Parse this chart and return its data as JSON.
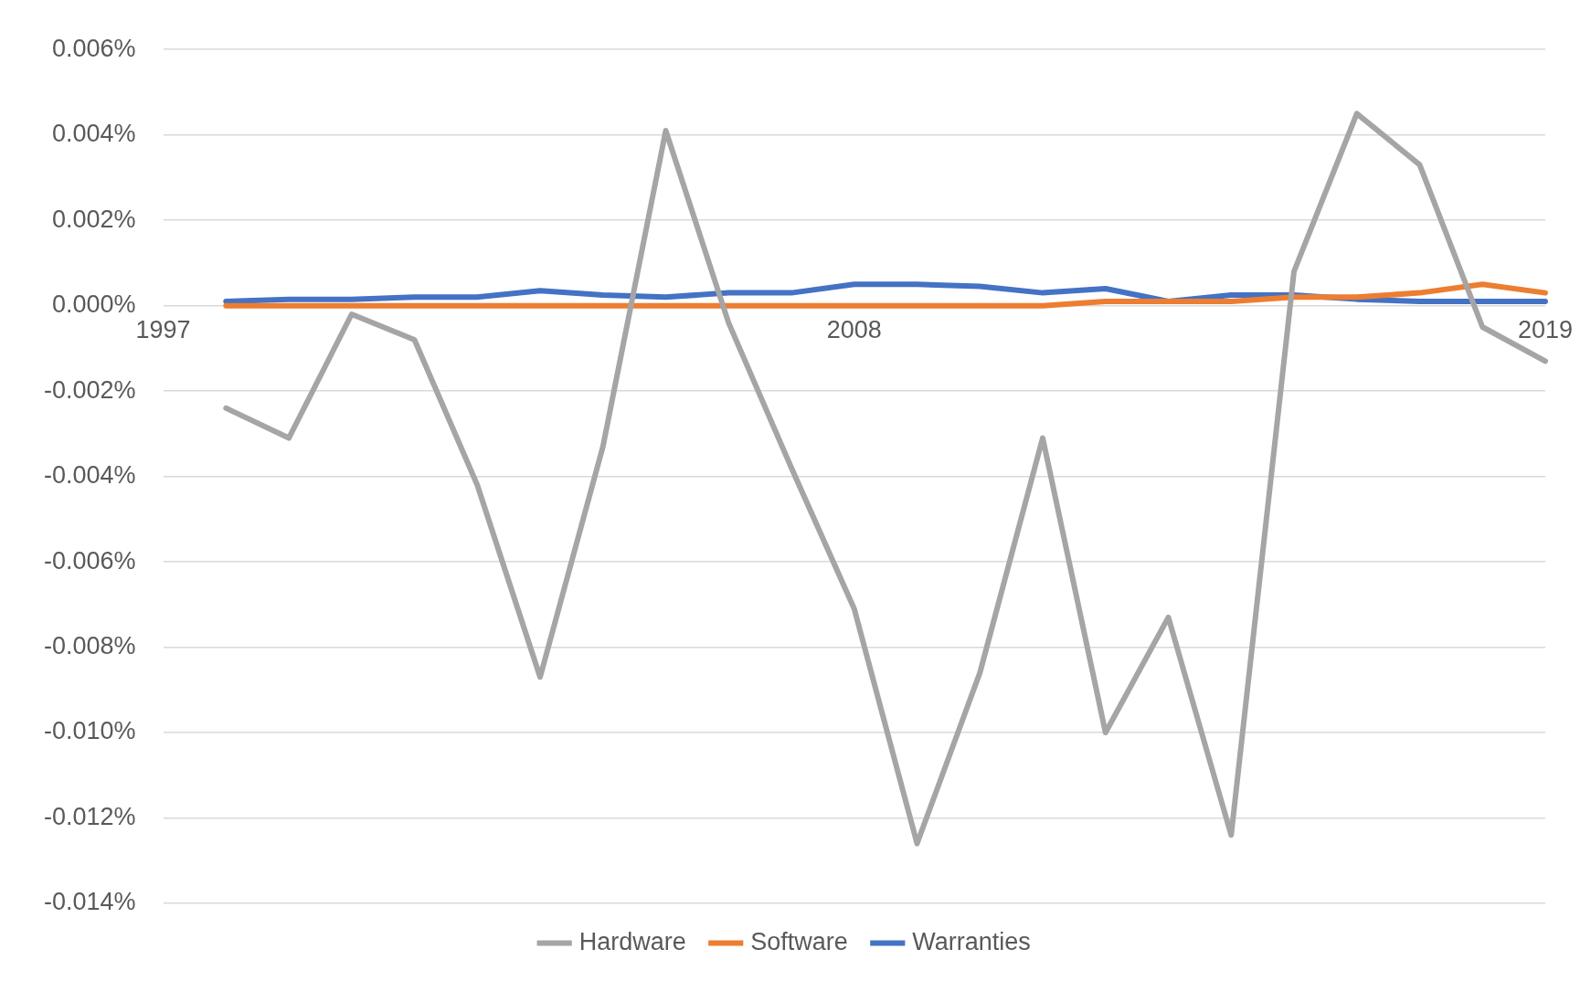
{
  "chart_data": {
    "type": "line",
    "categories": [
      "1997",
      null,
      null,
      null,
      null,
      null,
      null,
      null,
      null,
      null,
      null,
      "2008",
      null,
      null,
      null,
      null,
      null,
      null,
      null,
      null,
      null,
      null,
      "2019"
    ],
    "series": [
      {
        "name": "Hardware",
        "color": "#a5a5a5",
        "values": [
          null,
          -0.0024,
          -0.0031,
          -0.0002,
          -0.0008,
          -0.0042,
          -0.0087,
          -0.0033,
          0.0041,
          -0.0004,
          -0.0038,
          -0.0071,
          -0.0126,
          -0.0086,
          -0.0031,
          -0.01,
          -0.0073,
          -0.0124,
          0.0008,
          0.0045,
          0.0033,
          -0.0005,
          -0.0013
        ]
      },
      {
        "name": "Software",
        "color": "#ed7d31",
        "values": [
          null,
          0,
          0,
          0,
          0,
          0,
          0,
          0,
          0,
          0,
          0,
          0,
          0,
          0,
          0,
          0.0001,
          0.0001,
          0.0001,
          0.0002,
          0.0002,
          0.0003,
          0.0005,
          0.0003
        ]
      },
      {
        "name": "Warranties",
        "color": "#4472c4",
        "values": [
          null,
          0.0001,
          0.00015,
          0.00015,
          0.0002,
          0.0002,
          0.00035,
          0.00025,
          0.0002,
          0.0003,
          0.0003,
          0.0005,
          0.0005,
          0.00045,
          0.0003,
          0.0004,
          0.0001,
          0.00025,
          0.00025,
          0.00015,
          0.0001,
          0.0001,
          0.0001
        ]
      }
    ],
    "ylim": [
      -0.014,
      0.006
    ],
    "yticks": [
      {
        "value": -0.014,
        "label": "-0.014%"
      },
      {
        "value": -0.012,
        "label": "-0.012%"
      },
      {
        "value": -0.01,
        "label": "-0.010%"
      },
      {
        "value": -0.008,
        "label": "-0.008%"
      },
      {
        "value": -0.006,
        "label": "-0.006%"
      },
      {
        "value": -0.004,
        "label": "-0.004%"
      },
      {
        "value": -0.002,
        "label": "-0.002%"
      },
      {
        "value": 0,
        "label": "0.000%"
      },
      {
        "value": 0.002,
        "label": "0.002%"
      },
      {
        "value": 0.004,
        "label": "0.004%"
      },
      {
        "value": 0.006,
        "label": "0.006%"
      }
    ],
    "grid": "y",
    "legend": "bottom",
    "marker": "none",
    "line_style": "solid"
  }
}
